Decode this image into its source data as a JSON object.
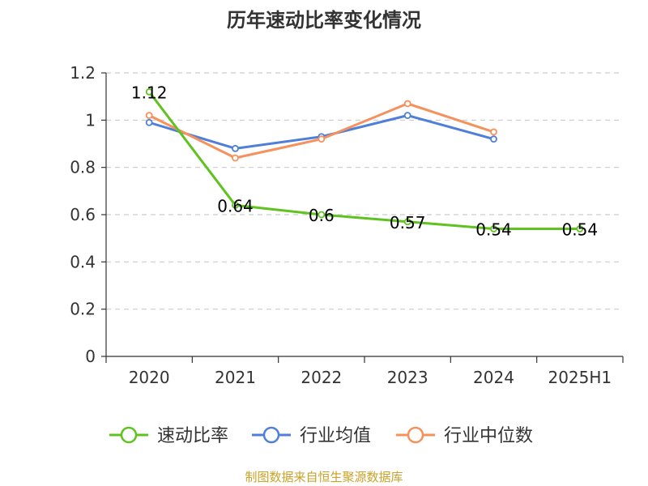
{
  "chart_data": {
    "type": "line",
    "title": "历年速动比率变化情况",
    "categories": [
      "2020",
      "2021",
      "2022",
      "2023",
      "2024",
      "2025H1"
    ],
    "ylim": [
      0,
      1.2
    ],
    "yticks": [
      "0",
      "0.2",
      "0.4",
      "0.6",
      "0.8",
      "1",
      "1.2"
    ],
    "grid": true,
    "legend_position": "bottom",
    "series": [
      {
        "name": "速动比率",
        "color": "#5fc31f",
        "values": [
          1.12,
          0.64,
          0.6,
          0.57,
          0.54,
          0.54
        ],
        "labels": [
          "1.12",
          "0.64",
          "0.6",
          "0.57",
          "0.54",
          "0.54"
        ],
        "show_labels": true
      },
      {
        "name": "行业均值",
        "color": "#4f7fd9",
        "values": [
          0.99,
          0.88,
          0.93,
          1.02,
          0.92,
          null
        ],
        "show_labels": false
      },
      {
        "name": "行业中位数",
        "color": "#f5915c",
        "values": [
          1.02,
          0.84,
          0.92,
          1.07,
          0.95,
          null
        ],
        "show_labels": false
      }
    ],
    "source": "制图数据来自恒生聚源数据库"
  }
}
